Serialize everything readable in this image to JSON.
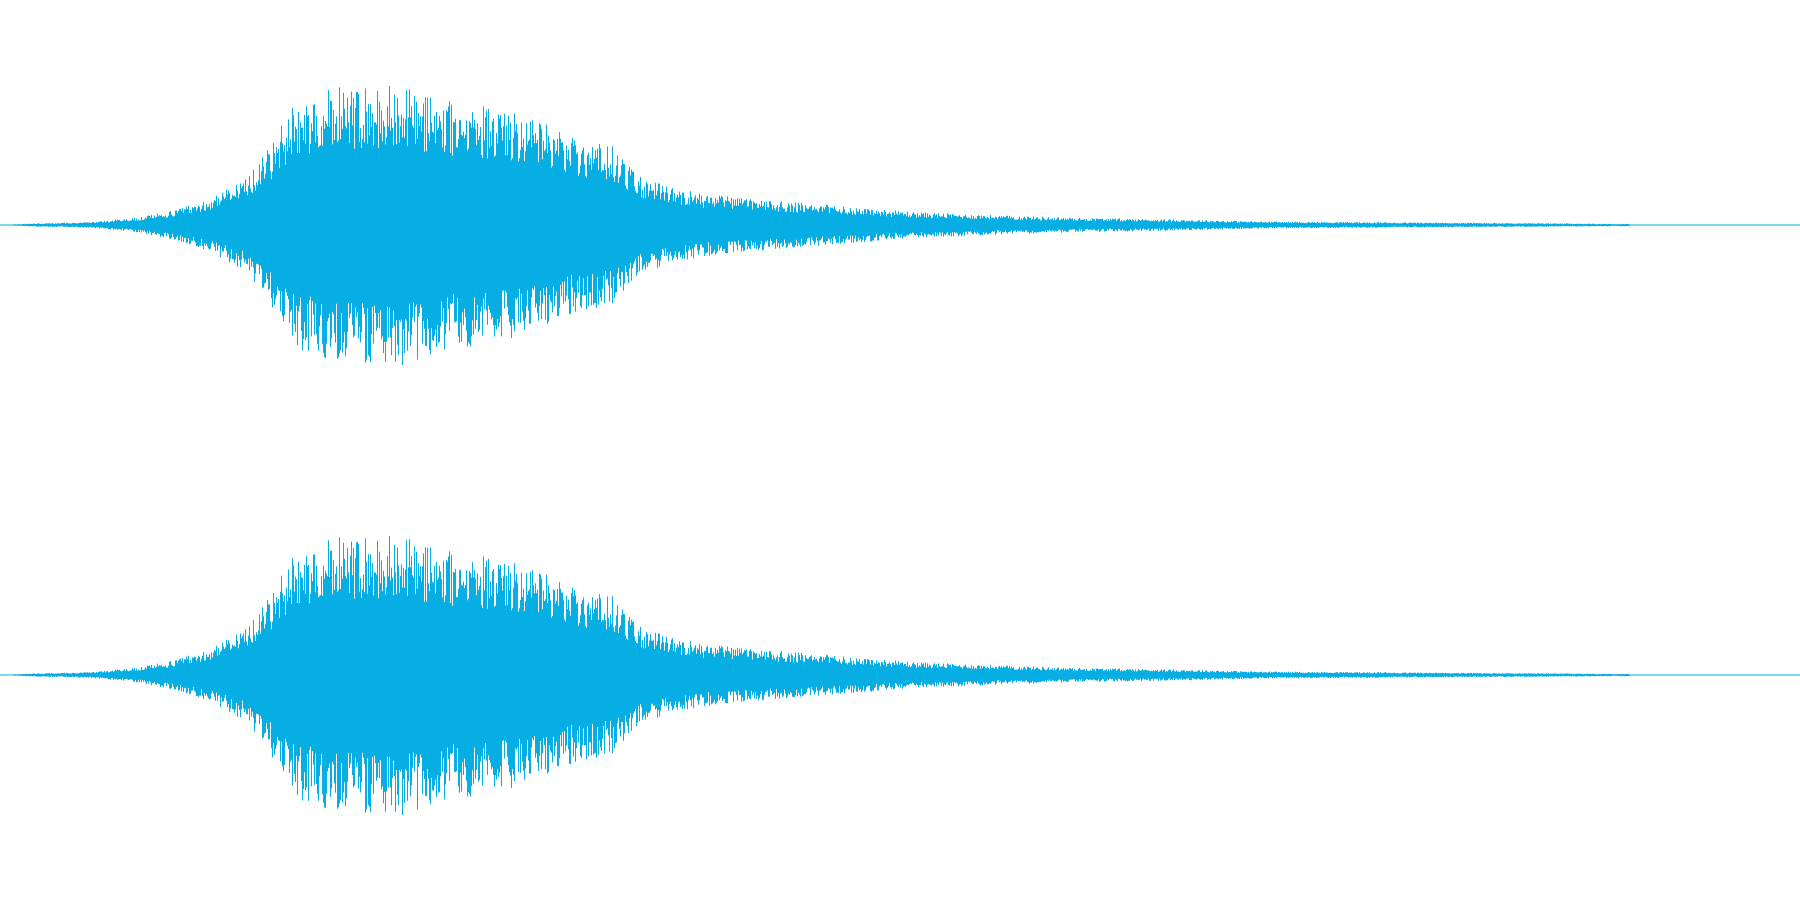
{
  "waveform": {
    "color": "#07aee3",
    "channels": [
      {
        "name": "channel-1",
        "envelope": [
          [
            0.0,
            0.0
          ],
          [
            0.015,
            0.01
          ],
          [
            0.05,
            0.02
          ],
          [
            0.075,
            0.05
          ],
          [
            0.095,
            0.1
          ],
          [
            0.115,
            0.18
          ],
          [
            0.135,
            0.32
          ],
          [
            0.15,
            0.55
          ],
          [
            0.162,
            0.85
          ],
          [
            0.175,
            0.92
          ],
          [
            0.19,
            0.98
          ],
          [
            0.205,
            0.96
          ],
          [
            0.22,
            1.0
          ],
          [
            0.24,
            0.9
          ],
          [
            0.26,
            0.86
          ],
          [
            0.28,
            0.82
          ],
          [
            0.3,
            0.72
          ],
          [
            0.32,
            0.62
          ],
          [
            0.34,
            0.55
          ],
          [
            0.355,
            0.34
          ],
          [
            0.37,
            0.28
          ],
          [
            0.39,
            0.22
          ],
          [
            0.42,
            0.18
          ],
          [
            0.45,
            0.15
          ],
          [
            0.48,
            0.12
          ],
          [
            0.51,
            0.09
          ],
          [
            0.55,
            0.07
          ],
          [
            0.6,
            0.05
          ],
          [
            0.65,
            0.04
          ],
          [
            0.7,
            0.025
          ],
          [
            0.76,
            0.02
          ],
          [
            0.82,
            0.015
          ],
          [
            0.86,
            0.012
          ],
          [
            0.905,
            0.008
          ],
          [
            0.906,
            0.0
          ],
          [
            1.0,
            0.0
          ]
        ]
      },
      {
        "name": "channel-2",
        "envelope": [
          [
            0.0,
            0.0
          ],
          [
            0.015,
            0.01
          ],
          [
            0.05,
            0.02
          ],
          [
            0.075,
            0.05
          ],
          [
            0.095,
            0.1
          ],
          [
            0.115,
            0.18
          ],
          [
            0.135,
            0.32
          ],
          [
            0.15,
            0.55
          ],
          [
            0.162,
            0.85
          ],
          [
            0.175,
            0.92
          ],
          [
            0.19,
            0.98
          ],
          [
            0.205,
            0.96
          ],
          [
            0.22,
            1.0
          ],
          [
            0.24,
            0.9
          ],
          [
            0.26,
            0.86
          ],
          [
            0.28,
            0.82
          ],
          [
            0.3,
            0.72
          ],
          [
            0.32,
            0.62
          ],
          [
            0.34,
            0.55
          ],
          [
            0.355,
            0.34
          ],
          [
            0.37,
            0.28
          ],
          [
            0.39,
            0.22
          ],
          [
            0.42,
            0.18
          ],
          [
            0.45,
            0.15
          ],
          [
            0.48,
            0.12
          ],
          [
            0.51,
            0.09
          ],
          [
            0.55,
            0.07
          ],
          [
            0.6,
            0.05
          ],
          [
            0.65,
            0.04
          ],
          [
            0.7,
            0.025
          ],
          [
            0.76,
            0.02
          ],
          [
            0.82,
            0.015
          ],
          [
            0.86,
            0.012
          ],
          [
            0.905,
            0.008
          ],
          [
            0.906,
            0.0
          ],
          [
            1.0,
            0.0
          ]
        ]
      }
    ]
  }
}
